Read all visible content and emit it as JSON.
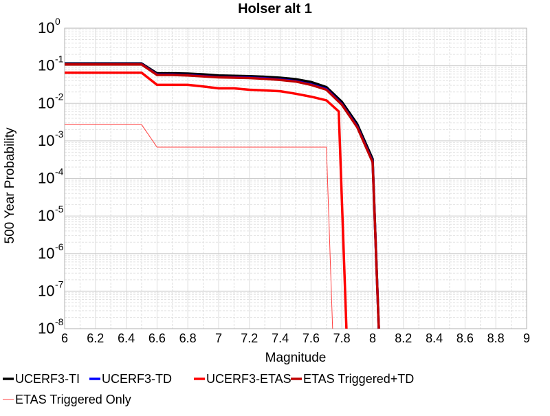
{
  "chart_data": {
    "type": "line",
    "title": "Holser alt 1",
    "xlabel": "Magnitude",
    "ylabel": "500 Year Probability",
    "xlim": [
      6,
      9
    ],
    "ylim": [
      1e-08,
      1
    ],
    "yscale": "log",
    "x_ticks": [
      "6",
      "6.2",
      "6.4",
      "6.6",
      "6.8",
      "7",
      "7.2",
      "7.4",
      "7.6",
      "7.8",
      "8",
      "8.2",
      "8.4",
      "8.6",
      "8.8",
      "9"
    ],
    "y_ticks": [
      {
        "base": "10",
        "exp": "0"
      },
      {
        "base": "10",
        "exp": "-1"
      },
      {
        "base": "10",
        "exp": "-2"
      },
      {
        "base": "10",
        "exp": "-3"
      },
      {
        "base": "10",
        "exp": "-4"
      },
      {
        "base": "10",
        "exp": "-5"
      },
      {
        "base": "10",
        "exp": "-6"
      },
      {
        "base": "10",
        "exp": "-7"
      },
      {
        "base": "10",
        "exp": "-8"
      }
    ],
    "grid": true,
    "legend_position": "bottom",
    "series": [
      {
        "name": "UCERF3-TI",
        "color": "#000000",
        "style": "thick",
        "x": [
          6.0,
          6.5,
          6.6,
          6.7,
          6.8,
          6.9,
          7.0,
          7.1,
          7.2,
          7.3,
          7.4,
          7.5,
          7.6,
          7.7,
          7.8,
          7.9,
          8.0,
          8.04
        ],
        "y": [
          0.115,
          0.115,
          0.063,
          0.063,
          0.062,
          0.059,
          0.055,
          0.054,
          0.053,
          0.051,
          0.048,
          0.044,
          0.037,
          0.027,
          0.011,
          0.0028,
          0.00033,
          1e-08
        ]
      },
      {
        "name": "UCERF3-TD",
        "color": "#0000ff",
        "style": "thick",
        "x": [
          6.0,
          6.5,
          6.6,
          6.7,
          6.8,
          6.9,
          7.0,
          7.1,
          7.2,
          7.3,
          7.4,
          7.5,
          7.6,
          7.7,
          7.8,
          7.9,
          8.0,
          8.04
        ],
        "y": [
          0.11,
          0.11,
          0.058,
          0.058,
          0.056,
          0.053,
          0.05,
          0.049,
          0.048,
          0.046,
          0.043,
          0.039,
          0.032,
          0.024,
          0.0095,
          0.0024,
          0.00028,
          1e-08
        ]
      },
      {
        "name": "UCERF3-ETAS",
        "color": "#ff0000",
        "style": "thick",
        "x": [
          6.0,
          6.5,
          6.6,
          6.7,
          6.8,
          6.9,
          7.0,
          7.1,
          7.2,
          7.3,
          7.4,
          7.5,
          7.6,
          7.7,
          7.78,
          7.83
        ],
        "y": [
          0.065,
          0.065,
          0.031,
          0.031,
          0.031,
          0.028,
          0.025,
          0.025,
          0.023,
          0.022,
          0.021,
          0.018,
          0.015,
          0.012,
          0.0061,
          1e-08
        ]
      },
      {
        "name": "ETAS Triggered+TD",
        "color": "#c00000",
        "style": "thick",
        "x": [
          6.0,
          6.5,
          6.6,
          6.7,
          6.8,
          6.9,
          7.0,
          7.1,
          7.2,
          7.3,
          7.4,
          7.5,
          7.6,
          7.7,
          7.8,
          7.9,
          8.0,
          8.04
        ],
        "y": [
          0.108,
          0.108,
          0.057,
          0.057,
          0.055,
          0.052,
          0.049,
          0.048,
          0.047,
          0.045,
          0.042,
          0.038,
          0.031,
          0.023,
          0.0092,
          0.0023,
          0.00027,
          1e-08
        ]
      },
      {
        "name": "ETAS Triggered Only",
        "color": "#ff4040",
        "style": "thin",
        "x": [
          6.0,
          6.5,
          6.6,
          7.0,
          7.5,
          7.7,
          7.74
        ],
        "y": [
          0.0027,
          0.0027,
          0.00068,
          0.00068,
          0.00068,
          0.00068,
          1e-08
        ]
      }
    ]
  }
}
